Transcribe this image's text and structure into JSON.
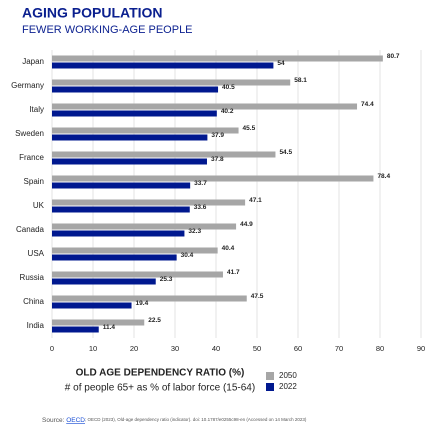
{
  "chart_data": {
    "type": "bar",
    "orientation": "horizontal",
    "title": "AGING POPULATION",
    "subtitle": "FEWER WORKING-AGE PEOPLE",
    "categories": [
      "Japan",
      "Germany",
      "Italy",
      "Sweden",
      "France",
      "Spain",
      "UK",
      "Canada",
      "USA",
      "Russia",
      "China",
      "India"
    ],
    "series": [
      {
        "name": "2050",
        "color": "#a6a6a6",
        "values": [
          80.7,
          58.1,
          74.4,
          45.5,
          54.5,
          78.4,
          47.1,
          44.9,
          40.4,
          41.7,
          47.5,
          22.5
        ]
      },
      {
        "name": "2022",
        "color": "#00188f",
        "values": [
          54,
          40.5,
          40.2,
          37.9,
          37.8,
          33.7,
          33.6,
          32.3,
          30.4,
          25.3,
          19.4,
          11.4
        ]
      }
    ],
    "xlim": [
      0,
      90
    ],
    "xticks": [
      0,
      10,
      20,
      30,
      40,
      50,
      60,
      70,
      80,
      90
    ],
    "grid": true,
    "xlabel": "OLD AGE DEPENDENCY RATIO (%)",
    "xlabel_sub": "# of people 65+ as % of labor force (15-64)",
    "source_label": "Source:",
    "source_link": "OECD",
    "source_note": "; OECD (2023), Old-age dependency ratio (indicator). doi: 10.1787/e0255c98-en (Accessed on 14 March 2023)"
  }
}
